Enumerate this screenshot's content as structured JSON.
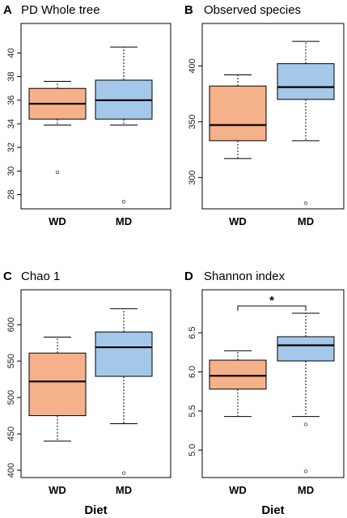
{
  "colors": {
    "WD": "#f5b18a",
    "MD": "#a4c8ea"
  },
  "chart_data": [
    {
      "type": "boxplot",
      "panel_label": "A",
      "title": "PD Whole tree",
      "ylim": [
        26.8,
        42.5
      ],
      "yticks": [
        28,
        30,
        32,
        34,
        36,
        38,
        40
      ],
      "categories": [
        "WD",
        "MD"
      ],
      "boxes": [
        {
          "name": "WD",
          "whisker_low": 33.9,
          "q1": 34.4,
          "median": 35.7,
          "q3": 37.0,
          "whisker_high": 37.6,
          "outliers": [
            29.9
          ]
        },
        {
          "name": "MD",
          "whisker_low": 33.9,
          "q1": 34.4,
          "median": 36.0,
          "q3": 37.7,
          "whisker_high": 40.5,
          "outliers": [
            27.4
          ]
        }
      ],
      "xlabel": ""
    },
    {
      "type": "boxplot",
      "panel_label": "B",
      "title": "Observed species",
      "ylim": [
        272,
        438
      ],
      "yticks": [
        300,
        350,
        400
      ],
      "categories": [
        "WD",
        "MD"
      ],
      "boxes": [
        {
          "name": "WD",
          "whisker_low": 317,
          "q1": 333,
          "median": 347,
          "q3": 382,
          "whisker_high": 392,
          "outliers": []
        },
        {
          "name": "MD",
          "whisker_low": 333,
          "q1": 370,
          "median": 381,
          "q3": 402,
          "whisker_high": 422,
          "outliers": [
            277
          ]
        }
      ],
      "xlabel": ""
    },
    {
      "type": "boxplot",
      "panel_label": "C",
      "title": "Chao 1",
      "ylim": [
        390,
        648
      ],
      "yticks": [
        400,
        450,
        500,
        550,
        600
      ],
      "categories": [
        "WD",
        "MD"
      ],
      "boxes": [
        {
          "name": "WD",
          "whisker_low": 440,
          "q1": 475,
          "median": 522,
          "q3": 561,
          "whisker_high": 583,
          "outliers": []
        },
        {
          "name": "MD",
          "whisker_low": 464,
          "q1": 529,
          "median": 569,
          "q3": 590,
          "whisker_high": 622,
          "outliers": [
            396
          ]
        }
      ],
      "xlabel": "Diet"
    },
    {
      "type": "boxplot",
      "panel_label": "D",
      "title": "Shannon index",
      "ylim": [
        4.65,
        7.05
      ],
      "yticks": [
        5.0,
        5.5,
        6.0,
        6.5
      ],
      "categories": [
        "WD",
        "MD"
      ],
      "boxes": [
        {
          "name": "WD",
          "whisker_low": 5.43,
          "q1": 5.78,
          "median": 5.95,
          "q3": 6.15,
          "whisker_high": 6.27,
          "outliers": []
        },
        {
          "name": "MD",
          "whisker_low": 5.43,
          "q1": 6.14,
          "median": 6.34,
          "q3": 6.45,
          "whisker_high": 6.75,
          "outliers": [
            5.33,
            4.73
          ]
        }
      ],
      "xlabel": "Diet",
      "significance": {
        "text": "*"
      }
    }
  ]
}
